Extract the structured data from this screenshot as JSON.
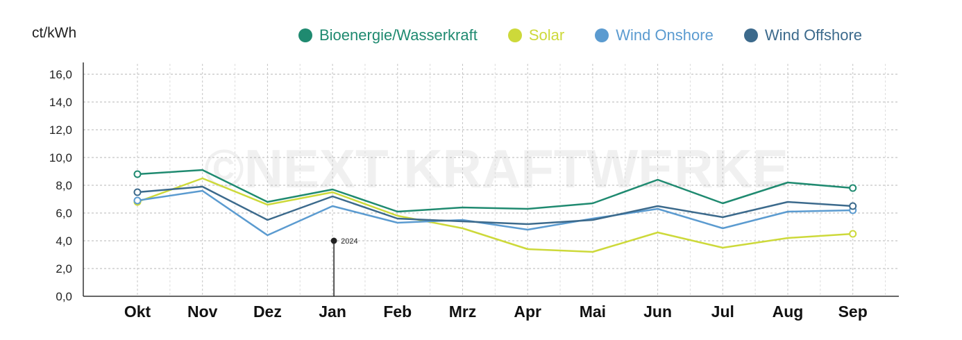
{
  "chart_data": {
    "type": "line",
    "ylabel": "ct/kWh",
    "ylim": [
      0,
      16
    ],
    "yticks": [
      "0,0",
      "2,0",
      "4,0",
      "6,0",
      "8,0",
      "10,0",
      "12,0",
      "14,0",
      "16,0"
    ],
    "ytick_values": [
      0,
      2,
      4,
      6,
      8,
      10,
      12,
      14,
      16
    ],
    "categories": [
      "Okt",
      "Nov",
      "Dez",
      "Jan",
      "Feb",
      "Mrz",
      "Apr",
      "Mai",
      "Jun",
      "Jul",
      "Aug",
      "Sep"
    ],
    "legend_position": "top",
    "grid": true,
    "series": [
      {
        "name": "Bioenergie/Wasserkraft",
        "color": "#1f8a70",
        "values": [
          8.8,
          9.1,
          6.8,
          7.7,
          6.1,
          6.4,
          6.3,
          6.7,
          8.4,
          6.7,
          8.2,
          7.8
        ]
      },
      {
        "name": "Solar",
        "color": "#cdd93a",
        "values": [
          6.8,
          8.5,
          6.6,
          7.5,
          5.8,
          4.9,
          3.4,
          3.2,
          4.6,
          3.5,
          4.2,
          4.5
        ]
      },
      {
        "name": "Wind Onshore",
        "color": "#5b9bd0",
        "values": [
          6.9,
          7.6,
          4.4,
          6.5,
          5.3,
          5.5,
          4.8,
          5.6,
          6.3,
          4.9,
          6.1,
          6.2
        ]
      },
      {
        "name": "Wind Offshore",
        "color": "#3c6a8c",
        "values": [
          7.5,
          7.9,
          5.5,
          7.2,
          5.6,
          5.4,
          5.2,
          5.5,
          6.5,
          5.7,
          6.8,
          6.5
        ]
      }
    ],
    "annotation": {
      "label": "2024",
      "category": "Jan",
      "value": 4.0
    },
    "watermark": "©NEXT KRAFTWERKE"
  }
}
